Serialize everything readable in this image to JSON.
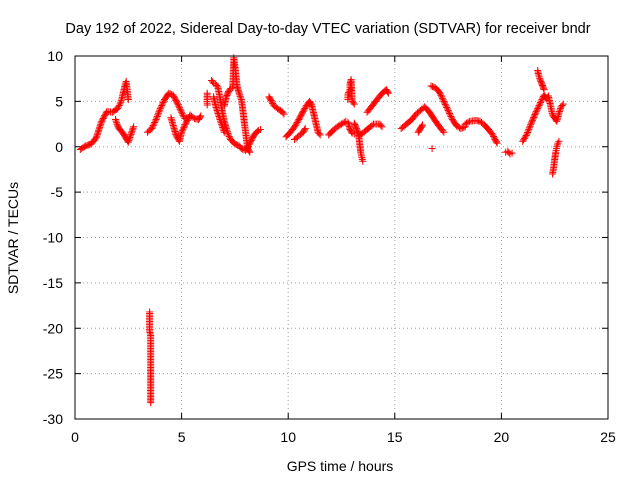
{
  "chart_data": {
    "type": "scatter",
    "title": "Day 192 of 2022, Sidereal Day-to-day VTEC variation (SDTVAR) for receiver bndr",
    "xlabel": "GPS time / hours",
    "ylabel": "SDTVAR / TECUs",
    "xlim": [
      0,
      25
    ],
    "ylim": [
      -30,
      10
    ],
    "xticks": [
      0,
      5,
      10,
      15,
      20,
      25
    ],
    "yticks": [
      -30,
      -25,
      -20,
      -15,
      -10,
      -5,
      0,
      5,
      10
    ],
    "grid": true,
    "marker": "+",
    "color": "#ff0000",
    "series": [
      {
        "name": "SDTVAR",
        "arcs": [
          [
            [
              0.25,
              -0.3
            ],
            [
              0.5,
              0.1
            ],
            [
              0.75,
              0.3
            ],
            [
              1.0,
              1.0
            ],
            [
              1.25,
              2.8
            ],
            [
              1.5,
              3.9
            ],
            [
              1.75,
              3.8
            ],
            [
              2.0,
              4.2
            ],
            [
              2.15,
              4.9
            ],
            [
              2.25,
              5.8
            ],
            [
              2.35,
              6.8
            ],
            [
              2.4,
              7.2
            ],
            [
              2.5,
              5.2
            ]
          ],
          [
            [
              1.9,
              3.0
            ],
            [
              2.0,
              2.3
            ],
            [
              2.1,
              1.9
            ],
            [
              2.25,
              1.5
            ],
            [
              2.5,
              0.5
            ],
            [
              2.6,
              1.2
            ],
            [
              2.75,
              2.2
            ]
          ],
          [
            [
              3.4,
              1.6
            ],
            [
              3.6,
              2.0
            ],
            [
              3.8,
              3.0
            ],
            [
              4.0,
              4.2
            ],
            [
              4.2,
              5.2
            ],
            [
              4.4,
              5.9
            ],
            [
              4.6,
              5.7
            ],
            [
              4.8,
              4.8
            ],
            [
              5.0,
              3.8
            ],
            [
              5.1,
              3.3
            ],
            [
              5.15,
              3.1
            ],
            [
              5.3,
              3.2
            ]
          ],
          [
            [
              4.5,
              3.2
            ],
            [
              4.65,
              2.0
            ],
            [
              4.75,
              1.2
            ],
            [
              4.9,
              0.6
            ],
            [
              5.0,
              1.6
            ],
            [
              5.2,
              2.6
            ],
            [
              5.4,
              3.5
            ],
            [
              5.6,
              3.1
            ],
            [
              5.8,
              3.0
            ],
            [
              5.9,
              3.4
            ]
          ],
          [
            [
              3.5,
              -18.2
            ],
            [
              3.5,
              -18.9
            ],
            [
              3.5,
              -19.6
            ],
            [
              3.5,
              -20.3
            ],
            [
              3.55,
              -20.8
            ],
            [
              3.55,
              -22.4
            ],
            [
              3.55,
              -24.5
            ],
            [
              3.55,
              -26.0
            ],
            [
              3.55,
              -27.2
            ],
            [
              3.55,
              -28.2
            ]
          ],
          [
            [
              6.4,
              7.3
            ],
            [
              6.5,
              7.0
            ],
            [
              6.6,
              6.9
            ],
            [
              6.7,
              6.6
            ],
            [
              6.8,
              5.4
            ],
            [
              6.9,
              4.0
            ],
            [
              7.0,
              2.8
            ],
            [
              7.1,
              2.0
            ],
            [
              7.2,
              1.3
            ],
            [
              7.3,
              0.8
            ],
            [
              7.5,
              0.3
            ],
            [
              7.7,
              0.1
            ],
            [
              7.8,
              -0.2
            ],
            [
              8.0,
              -0.4
            ],
            [
              8.1,
              -0.1
            ],
            [
              8.2,
              0.4
            ],
            [
              8.4,
              1.3
            ],
            [
              8.6,
              1.8
            ],
            [
              8.7,
              1.9
            ]
          ],
          [
            [
              6.5,
              5.5
            ],
            [
              6.6,
              4.5
            ],
            [
              6.8,
              3.0
            ],
            [
              6.9,
              2.3
            ],
            [
              7.0,
              1.6
            ]
          ],
          [
            [
              7.0,
              4.5
            ],
            [
              7.1,
              5.5
            ],
            [
              7.2,
              6.1
            ],
            [
              7.3,
              6.4
            ],
            [
              7.4,
              6.5
            ],
            [
              7.45,
              9.8
            ],
            [
              7.5,
              8.9
            ],
            [
              7.55,
              7.9
            ],
            [
              7.6,
              6.7
            ],
            [
              7.7,
              5.9
            ],
            [
              7.8,
              5.2
            ],
            [
              7.85,
              4.5
            ],
            [
              7.9,
              3.5
            ],
            [
              7.95,
              2.5
            ],
            [
              8.0,
              1.6
            ],
            [
              8.05,
              0.7
            ],
            [
              8.1,
              -0.2
            ],
            [
              8.2,
              -0.6
            ]
          ],
          [
            [
              6.2,
              4.6
            ],
            [
              6.2,
              5.2
            ],
            [
              6.2,
              5.9
            ]
          ],
          [
            [
              9.1,
              5.5
            ],
            [
              9.2,
              5.1
            ],
            [
              9.3,
              4.6
            ],
            [
              9.5,
              4.2
            ],
            [
              9.7,
              3.9
            ],
            [
              9.8,
              3.6
            ]
          ],
          [
            [
              9.9,
              1.1
            ],
            [
              10.1,
              1.6
            ],
            [
              10.3,
              2.2
            ],
            [
              10.5,
              3.0
            ],
            [
              10.7,
              3.9
            ],
            [
              10.9,
              4.7
            ],
            [
              11.0,
              5.0
            ],
            [
              11.1,
              4.6
            ],
            [
              11.2,
              3.6
            ],
            [
              11.3,
              2.6
            ],
            [
              11.4,
              1.6
            ],
            [
              11.5,
              1.3
            ]
          ],
          [
            [
              10.3,
              0.8
            ],
            [
              10.5,
              1.2
            ],
            [
              10.7,
              1.6
            ],
            [
              10.8,
              2.0
            ]
          ],
          [
            [
              11.9,
              1.3
            ],
            [
              12.1,
              1.8
            ],
            [
              12.3,
              2.2
            ],
            [
              12.5,
              2.5
            ],
            [
              12.7,
              2.8
            ],
            [
              12.8,
              2.7
            ],
            [
              12.9,
              1.9
            ],
            [
              13.0,
              1.5
            ],
            [
              13.1,
              1.4
            ]
          ],
          [
            [
              12.8,
              5.2
            ],
            [
              12.8,
              5.8
            ],
            [
              12.9,
              6.3
            ],
            [
              12.9,
              6.9
            ],
            [
              12.95,
              7.4
            ],
            [
              13.0,
              5.0
            ],
            [
              13.1,
              4.7
            ]
          ],
          [
            [
              13.1,
              2.6
            ],
            [
              13.2,
              2.0
            ],
            [
              13.3,
              1.4
            ],
            [
              13.35,
              0.4
            ],
            [
              13.4,
              -0.6
            ],
            [
              13.45,
              -1.2
            ],
            [
              13.5,
              -1.6
            ]
          ],
          [
            [
              13.3,
              1.2
            ],
            [
              13.5,
              1.5
            ],
            [
              13.7,
              1.9
            ],
            [
              13.8,
              2.1
            ],
            [
              14.0,
              2.5
            ],
            [
              14.3,
              2.5
            ],
            [
              14.4,
              2.2
            ]
          ],
          [
            [
              13.7,
              3.8
            ],
            [
              13.9,
              4.4
            ],
            [
              14.1,
              5.0
            ],
            [
              14.3,
              5.6
            ],
            [
              14.5,
              6.1
            ],
            [
              14.6,
              6.3
            ],
            [
              14.7,
              5.9
            ]
          ],
          [
            [
              15.3,
              2.0
            ],
            [
              15.5,
              2.4
            ],
            [
              15.8,
              3.0
            ],
            [
              16.0,
              3.6
            ],
            [
              16.2,
              4.0
            ],
            [
              16.4,
              4.4
            ],
            [
              16.6,
              3.9
            ],
            [
              16.8,
              3.2
            ],
            [
              17.0,
              2.5
            ],
            [
              17.2,
              1.9
            ],
            [
              17.3,
              1.6
            ]
          ],
          [
            [
              16.1,
              1.6
            ],
            [
              16.2,
              2.0
            ],
            [
              16.3,
              2.4
            ]
          ],
          [
            [
              16.7,
              6.7
            ],
            [
              16.9,
              6.5
            ],
            [
              17.1,
              6.0
            ],
            [
              17.3,
              5.0
            ],
            [
              17.5,
              4.0
            ],
            [
              17.7,
              3.0
            ],
            [
              17.9,
              2.3
            ],
            [
              18.1,
              2.0
            ],
            [
              18.3,
              2.2
            ]
          ],
          [
            [
              16.75,
              -0.2
            ]
          ],
          [
            [
              18.3,
              2.5
            ],
            [
              18.5,
              2.8
            ],
            [
              18.8,
              2.9
            ],
            [
              19.0,
              2.8
            ],
            [
              19.2,
              2.4
            ],
            [
              19.4,
              1.9
            ],
            [
              19.6,
              1.3
            ],
            [
              19.7,
              0.8
            ],
            [
              19.8,
              0.4
            ]
          ],
          [
            [
              20.2,
              -0.6
            ],
            [
              20.3,
              -0.5
            ],
            [
              20.4,
              -0.8
            ],
            [
              20.5,
              -0.7
            ]
          ],
          [
            [
              21.0,
              0.6
            ],
            [
              21.2,
              1.4
            ],
            [
              21.4,
              2.6
            ],
            [
              21.6,
              3.7
            ],
            [
              21.8,
              4.7
            ],
            [
              22.0,
              5.7
            ],
            [
              22.1,
              5.3
            ],
            [
              22.2,
              5.6
            ],
            [
              22.3,
              4.6
            ],
            [
              22.4,
              3.5
            ],
            [
              22.6,
              2.8
            ],
            [
              22.7,
              3.7
            ],
            [
              22.8,
              4.4
            ],
            [
              22.9,
              4.7
            ]
          ],
          [
            [
              21.7,
              8.4
            ],
            [
              21.75,
              7.9
            ],
            [
              21.8,
              7.5
            ],
            [
              21.9,
              6.9
            ],
            [
              22.0,
              6.3
            ]
          ],
          [
            [
              22.4,
              -3.0
            ],
            [
              22.45,
              -2.3
            ],
            [
              22.5,
              -1.4
            ],
            [
              22.55,
              -0.6
            ],
            [
              22.6,
              0.0
            ],
            [
              22.65,
              0.4
            ],
            [
              22.7,
              0.6
            ]
          ]
        ]
      }
    ]
  }
}
